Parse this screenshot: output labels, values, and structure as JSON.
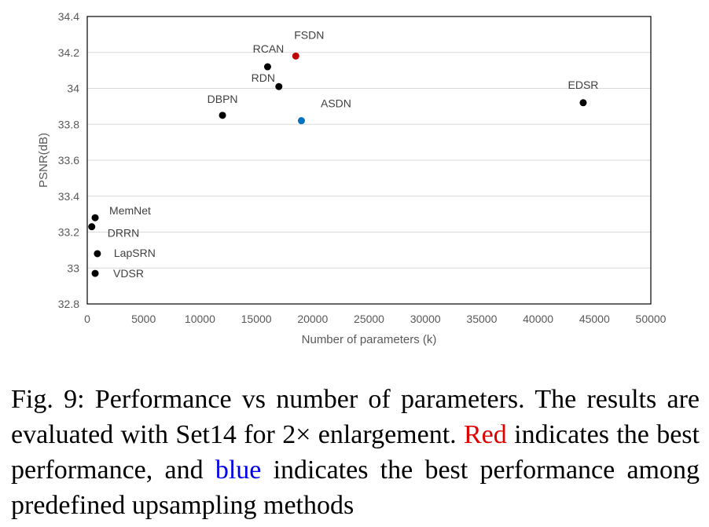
{
  "chart_data": {
    "type": "scatter",
    "title": "",
    "xlabel": "Number of parameters (k)",
    "ylabel": "PSNR(dB)",
    "xlim": [
      0,
      50000
    ],
    "ylim": [
      32.8,
      34.4
    ],
    "xticks": [
      0,
      5000,
      10000,
      15000,
      20000,
      25000,
      30000,
      35000,
      40000,
      45000,
      50000
    ],
    "yticks": [
      32.8,
      33,
      33.2,
      33.4,
      33.6,
      33.8,
      34,
      34.2,
      34.4
    ],
    "ytick_labels": [
      "32.8",
      "33",
      "33.2",
      "33.4",
      "33.6",
      "33.8",
      "34",
      "34.2",
      "34.4"
    ],
    "grid": "horizontal",
    "colors": {
      "default": "#000000",
      "best": "#c00000",
      "best_predefined": "#0070c0"
    },
    "points": [
      {
        "label": "FSDN",
        "x": 18500,
        "y": 34.18,
        "color": "#c00000"
      },
      {
        "label": "RCAN",
        "x": 16000,
        "y": 34.12,
        "color": "#000000"
      },
      {
        "label": "RDN",
        "x": 17000,
        "y": 34.01,
        "color": "#000000"
      },
      {
        "label": "DBPN",
        "x": 12000,
        "y": 33.85,
        "color": "#000000"
      },
      {
        "label": "ASDN",
        "x": 19000,
        "y": 33.82,
        "color": "#0070c0"
      },
      {
        "label": "EDSR",
        "x": 44000,
        "y": 33.92,
        "color": "#000000"
      },
      {
        "label": "MemNet",
        "x": 700,
        "y": 33.28,
        "color": "#000000"
      },
      {
        "label": "DRRN",
        "x": 400,
        "y": 33.23,
        "color": "#000000"
      },
      {
        "label": "LapSRN",
        "x": 900,
        "y": 33.08,
        "color": "#000000"
      },
      {
        "label": "VDSR",
        "x": 700,
        "y": 32.97,
        "color": "#000000"
      }
    ]
  },
  "caption": {
    "part1": "Fig. 9: Performance vs number of parameters. The results are evaluated with Set14 for 2× enlargement. ",
    "red_word": "Red",
    "part2": " indicates the best performance, and ",
    "blue_word": "blue",
    "part3": " indicates the best performance among predefined upsampling methods",
    "red_color": "#e00000",
    "blue_color": "#0000ee"
  }
}
